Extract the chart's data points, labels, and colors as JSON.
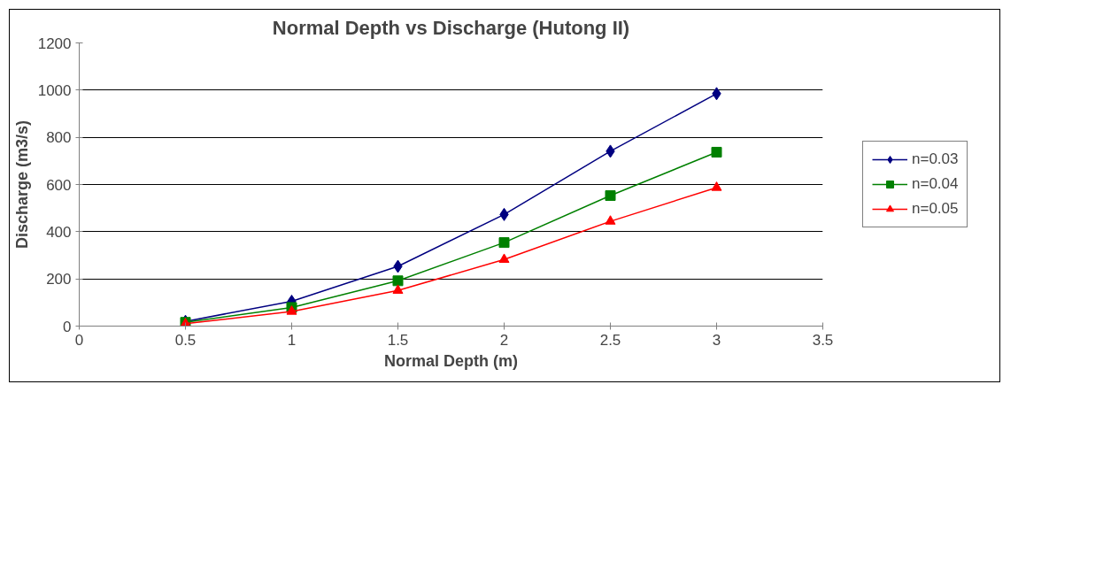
{
  "chart_data": {
    "type": "line",
    "title": "Normal Depth vs Discharge (Hutong II)",
    "xlabel": "Normal Depth (m)",
    "ylabel": "Discharge (m3/s)",
    "x": [
      0.5,
      1,
      1.5,
      2,
      2.5,
      3
    ],
    "series": [
      {
        "name": "n=0.03",
        "color": "#000080",
        "marker": "diamond",
        "values": [
          20,
          105,
          253,
          473,
          741,
          985
        ]
      },
      {
        "name": "n=0.04",
        "color": "#008000",
        "marker": "square",
        "values": [
          16,
          79,
          192,
          354,
          553,
          737
        ]
      },
      {
        "name": "n=0.05",
        "color": "#ff0000",
        "marker": "triangle",
        "values": [
          10,
          62,
          151,
          282,
          444,
          587
        ]
      }
    ],
    "xlim": [
      0,
      3.5
    ],
    "xticks": [
      0,
      0.5,
      1,
      1.5,
      2,
      2.5,
      3,
      3.5
    ],
    "ylim": [
      0,
      1200
    ],
    "yticks": [
      0,
      200,
      400,
      600,
      800,
      1000,
      1200
    ],
    "grid": "y",
    "legend": "right",
    "line_style": "solid"
  }
}
